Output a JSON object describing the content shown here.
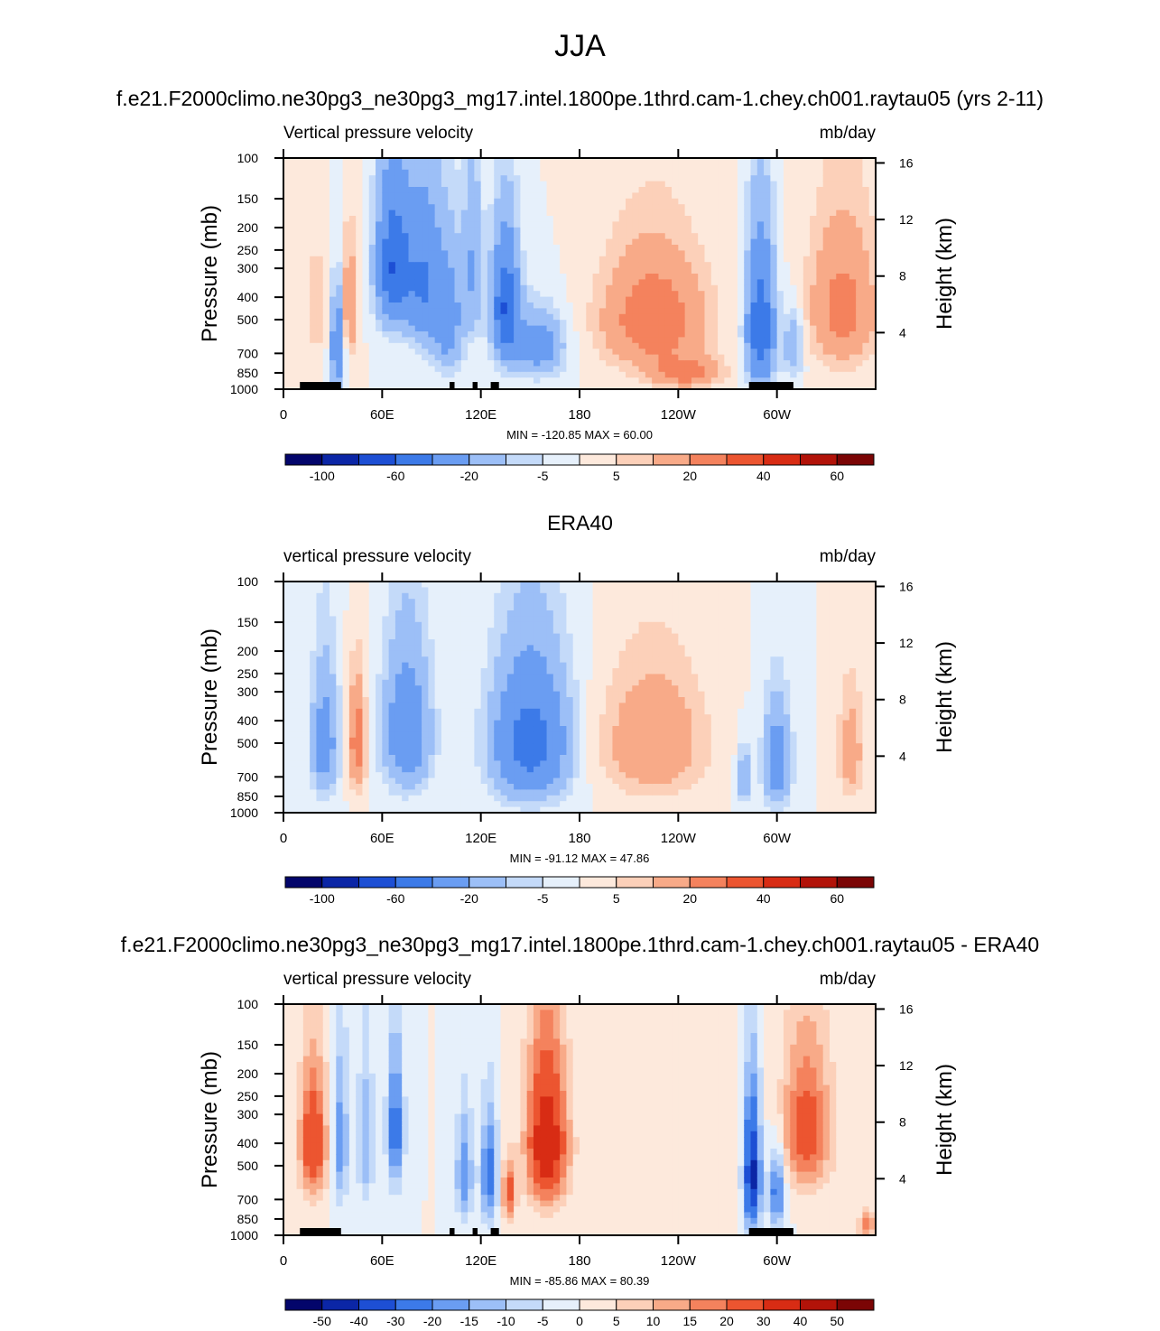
{
  "figure": {
    "title": "JJA"
  },
  "colors": {
    "scale": [
      "#03056b",
      "#0b26a6",
      "#1d4fd4",
      "#3c7ae8",
      "#6a9df2",
      "#9cbff7",
      "#c4daf9",
      "#e6f0fb",
      "#fde9dc",
      "#fcd0b9",
      "#f8aa88",
      "#f4825d",
      "#ec5530",
      "#d82c14",
      "#b21309",
      "#7b0505"
    ]
  },
  "chart_data": [
    {
      "type": "heatmap",
      "title": "f.e21.F2000climo.ne30pg3_ne30pg3_mg17.intel.1800pe.1thrd.cam-1.chey.ch001.raytau05 (yrs 2-11)",
      "left_label": "Vertical pressure velocity",
      "right_label": "mb/day",
      "ylabel": "Pressure (mb)",
      "y2label": "Height (km)",
      "x_ticks": [
        "0",
        "60E",
        "120E",
        "180",
        "120W",
        "60W"
      ],
      "x_tick_values": [
        0,
        60,
        120,
        180,
        240,
        300
      ],
      "xlim": [
        0,
        360
      ],
      "y_ticks": [
        "100",
        "150",
        "200",
        "250",
        "300",
        "400",
        "500",
        "700",
        "850",
        "1000"
      ],
      "y_tick_values": [
        100,
        150,
        200,
        250,
        300,
        400,
        500,
        700,
        850,
        1000
      ],
      "y2_ticks": [
        "16",
        "12",
        "8",
        "4"
      ],
      "y2_tick_values": [
        16,
        12,
        8,
        4
      ],
      "ylim": [
        1000,
        100
      ],
      "stats": "MIN = -120.85  MAX =  60.00",
      "colorbar_labels": [
        "-100",
        "-60",
        "-20",
        "-5",
        "5",
        "20",
        "40",
        "60"
      ],
      "colorbar_label_positions": [
        1,
        3,
        5,
        7,
        9,
        11,
        13,
        15
      ],
      "min": -120.85,
      "max": 60.0,
      "features": [
        {
          "lon": 40,
          "p": 450,
          "value": 20,
          "slon": 5,
          "sp": 250
        },
        {
          "lon": 20,
          "p": 450,
          "value": 10,
          "slon": 6,
          "sp": 250
        },
        {
          "lon": 33,
          "p": 650,
          "value": -40,
          "slon": 4,
          "sp": 300
        },
        {
          "lon": 67,
          "p": 300,
          "value": -60,
          "slon": 10,
          "sp": 200
        },
        {
          "lon": 85,
          "p": 350,
          "value": -40,
          "slon": 10,
          "sp": 250
        },
        {
          "lon": 100,
          "p": 500,
          "value": -30,
          "slon": 9,
          "sp": 300
        },
        {
          "lon": 115,
          "p": 300,
          "value": -20,
          "slon": 6,
          "sp": 250
        },
        {
          "lon": 135,
          "p": 450,
          "value": -60,
          "slon": 8,
          "sp": 250
        },
        {
          "lon": 155,
          "p": 650,
          "value": -30,
          "slon": 15,
          "sp": 200
        },
        {
          "lon": 225,
          "p": 500,
          "value": 30,
          "slon": 30,
          "sp": 280
        },
        {
          "lon": 245,
          "p": 850,
          "value": 25,
          "slon": 20,
          "sp": 120
        },
        {
          "lon": 290,
          "p": 550,
          "value": -60,
          "slon": 8,
          "sp": 350
        },
        {
          "lon": 310,
          "p": 650,
          "value": -20,
          "slon": 6,
          "sp": 200
        },
        {
          "lon": 340,
          "p": 450,
          "value": 25,
          "slon": 20,
          "sp": 300
        }
      ],
      "land_segments": [
        [
          10,
          34
        ],
        [
          28,
          35
        ],
        [
          101,
          104
        ],
        [
          115,
          118
        ],
        [
          126,
          131
        ],
        [
          283,
          310
        ]
      ]
    },
    {
      "type": "heatmap",
      "title": "ERA40",
      "left_label": "vertical pressure velocity",
      "right_label": "mb/day",
      "ylabel": "Pressure (mb)",
      "y2label": "Height (km)",
      "x_ticks": [
        "0",
        "60E",
        "120E",
        "180",
        "120W",
        "60W"
      ],
      "x_tick_values": [
        0,
        60,
        120,
        180,
        240,
        300
      ],
      "xlim": [
        0,
        360
      ],
      "y_ticks": [
        "100",
        "150",
        "200",
        "250",
        "300",
        "400",
        "500",
        "700",
        "850",
        "1000"
      ],
      "y_tick_values": [
        100,
        150,
        200,
        250,
        300,
        400,
        500,
        700,
        850,
        1000
      ],
      "y2_ticks": [
        "16",
        "12",
        "8",
        "4"
      ],
      "y2_tick_values": [
        16,
        12,
        8,
        4
      ],
      "ylim": [
        1000,
        100
      ],
      "stats": "MIN = -91.12  MAX =  47.86",
      "colorbar_labels": [
        "-100",
        "-60",
        "-20",
        "-5",
        "5",
        "20",
        "40",
        "60"
      ],
      "colorbar_label_positions": [
        1,
        3,
        5,
        7,
        9,
        11,
        13,
        15
      ],
      "min": -91.12,
      "max": 47.86,
      "features": [
        {
          "lon": 25,
          "p": 500,
          "value": -30,
          "slon": 8,
          "sp": 300
        },
        {
          "lon": 45,
          "p": 500,
          "value": 30,
          "slon": 5,
          "sp": 250
        },
        {
          "lon": 75,
          "p": 450,
          "value": -35,
          "slon": 14,
          "sp": 300
        },
        {
          "lon": 150,
          "p": 500,
          "value": -50,
          "slon": 22,
          "sp": 320
        },
        {
          "lon": 225,
          "p": 500,
          "value": 20,
          "slon": 30,
          "sp": 300
        },
        {
          "lon": 280,
          "p": 700,
          "value": -20,
          "slon": 4,
          "sp": 200
        },
        {
          "lon": 300,
          "p": 600,
          "value": -30,
          "slon": 8,
          "sp": 300
        },
        {
          "lon": 345,
          "p": 550,
          "value": 15,
          "slon": 8,
          "sp": 300
        }
      ],
      "land_segments": []
    },
    {
      "type": "heatmap",
      "title": "f.e21.F2000climo.ne30pg3_ne30pg3_mg17.intel.1800pe.1thrd.cam-1.chey.ch001.raytau05 - ERA40",
      "left_label": "vertical pressure velocity",
      "right_label": "mb/day",
      "ylabel": "Pressure (mb)",
      "y2label": "Height (km)",
      "x_ticks": [
        "0",
        "60E",
        "120E",
        "180",
        "120W",
        "60W"
      ],
      "x_tick_values": [
        0,
        60,
        120,
        180,
        240,
        300
      ],
      "xlim": [
        0,
        360
      ],
      "y_ticks": [
        "100",
        "150",
        "200",
        "250",
        "300",
        "400",
        "500",
        "700",
        "850",
        "1000"
      ],
      "y_tick_values": [
        100,
        150,
        200,
        250,
        300,
        400,
        500,
        700,
        850,
        1000
      ],
      "y2_ticks": [
        "16",
        "12",
        "8",
        "4"
      ],
      "y2_tick_values": [
        16,
        12,
        8,
        4
      ],
      "ylim": [
        1000,
        100
      ],
      "stats": "MIN = -85.86  MAX =  80.39",
      "colorbar_labels": [
        "-50",
        "-40",
        "-30",
        "-20",
        "-15",
        "-10",
        "-5",
        "0",
        "5",
        "10",
        "15",
        "20",
        "30",
        "40",
        "50"
      ],
      "colorbar_label_positions": [
        1,
        2,
        3,
        4,
        5,
        6,
        7,
        8,
        9,
        10,
        11,
        12,
        13,
        14,
        15
      ],
      "min": -85.86,
      "max": 80.39,
      "features": [
        {
          "lon": 18,
          "p": 400,
          "value": 30,
          "slon": 8,
          "sp": 250
        },
        {
          "lon": 35,
          "p": 400,
          "value": -20,
          "slon": 4,
          "sp": 300
        },
        {
          "lon": 50,
          "p": 400,
          "value": -15,
          "slon": 5,
          "sp": 300
        },
        {
          "lon": 68,
          "p": 350,
          "value": -25,
          "slon": 5,
          "sp": 250
        },
        {
          "lon": 110,
          "p": 550,
          "value": -20,
          "slon": 5,
          "sp": 300
        },
        {
          "lon": 125,
          "p": 550,
          "value": -25,
          "slon": 5,
          "sp": 300
        },
        {
          "lon": 137,
          "p": 650,
          "value": 25,
          "slon": 4,
          "sp": 180
        },
        {
          "lon": 160,
          "p": 400,
          "value": 40,
          "slon": 12,
          "sp": 300
        },
        {
          "lon": 230,
          "p": 500,
          "value": 5,
          "slon": 40,
          "sp": 300
        },
        {
          "lon": 285,
          "p": 550,
          "value": -45,
          "slon": 5,
          "sp": 350
        },
        {
          "lon": 300,
          "p": 650,
          "value": -25,
          "slon": 5,
          "sp": 250
        },
        {
          "lon": 318,
          "p": 350,
          "value": 25,
          "slon": 15,
          "sp": 250
        },
        {
          "lon": 355,
          "p": 900,
          "value": 20,
          "slon": 5,
          "sp": 120
        }
      ],
      "land_segments": [
        [
          10,
          34
        ],
        [
          28,
          35
        ],
        [
          101,
          104
        ],
        [
          115,
          118
        ],
        [
          126,
          131
        ],
        [
          283,
          310
        ]
      ]
    }
  ]
}
